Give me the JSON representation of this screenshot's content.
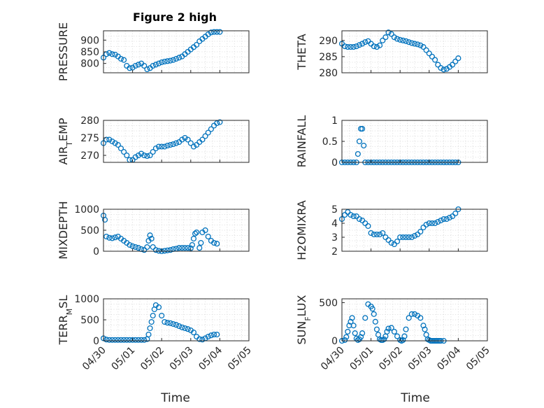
{
  "title": "Figure 2 high",
  "xlabel": "Time",
  "chart_data": [
    {
      "type": "scatter",
      "ylabel": "PRESSURE",
      "ylabel_sub": "",
      "ylabel_tail": "",
      "ylim": [
        760,
        940
      ],
      "yticks": [
        800,
        850,
        900
      ],
      "show_xticks": false,
      "title_key": "title",
      "x": [
        0,
        0.1,
        0.2,
        0.3,
        0.4,
        0.5,
        0.6,
        0.7,
        0.8,
        0.9,
        1.0,
        1.1,
        1.2,
        1.3,
        1.4,
        1.5,
        1.6,
        1.7,
        1.8,
        1.9,
        2.0,
        2.1,
        2.2,
        2.3,
        2.4,
        2.5,
        2.6,
        2.7,
        2.8,
        2.9,
        3.0,
        3.1,
        3.2,
        3.3,
        3.4,
        3.5,
        3.6,
        3.7,
        3.8,
        3.9,
        4.0
      ],
      "y": [
        825,
        840,
        845,
        840,
        838,
        830,
        820,
        815,
        790,
        780,
        782,
        790,
        795,
        800,
        790,
        775,
        780,
        790,
        795,
        800,
        805,
        808,
        810,
        812,
        815,
        820,
        825,
        830,
        840,
        850,
        860,
        870,
        880,
        895,
        905,
        915,
        925,
        933,
        935,
        935,
        935
      ]
    },
    {
      "type": "scatter",
      "ylabel": "THETA",
      "ylabel_sub": "",
      "ylabel_tail": "",
      "ylim": [
        280,
        293
      ],
      "yticks": [
        280,
        285,
        290
      ],
      "show_xticks": false,
      "x": [
        0,
        0.1,
        0.2,
        0.3,
        0.4,
        0.5,
        0.6,
        0.7,
        0.8,
        0.9,
        1.0,
        1.1,
        1.2,
        1.3,
        1.4,
        1.5,
        1.6,
        1.7,
        1.8,
        1.9,
        2.0,
        2.1,
        2.2,
        2.3,
        2.4,
        2.5,
        2.6,
        2.7,
        2.8,
        2.9,
        3.0,
        3.1,
        3.2,
        3.3,
        3.4,
        3.5,
        3.6,
        3.7,
        3.8,
        3.9,
        4.0
      ],
      "y": [
        289,
        288.2,
        288,
        288,
        288,
        288.2,
        288.6,
        289,
        289.5,
        289.8,
        289,
        288.2,
        288,
        288.5,
        290,
        291,
        292.5,
        292,
        291,
        290.5,
        290.2,
        290,
        289.8,
        289.5,
        289.2,
        289,
        288.8,
        288.5,
        288,
        287,
        286,
        285,
        284,
        282.5,
        281.5,
        281,
        281.2,
        281.8,
        282.5,
        283.5,
        284.5
      ]
    },
    {
      "type": "scatter",
      "ylabel": "AIR",
      "ylabel_sub": "T",
      "ylabel_tail": "EMP",
      "ylim": [
        268,
        280
      ],
      "yticks": [
        270,
        275,
        280
      ],
      "show_xticks": false,
      "x": [
        0,
        0.1,
        0.2,
        0.3,
        0.4,
        0.5,
        0.6,
        0.7,
        0.8,
        0.9,
        1.0,
        1.1,
        1.2,
        1.3,
        1.4,
        1.5,
        1.6,
        1.7,
        1.8,
        1.9,
        2.0,
        2.1,
        2.2,
        2.3,
        2.4,
        2.5,
        2.6,
        2.7,
        2.8,
        2.9,
        3.0,
        3.1,
        3.2,
        3.3,
        3.4,
        3.5,
        3.6,
        3.7,
        3.8,
        3.9,
        4.0
      ],
      "y": [
        273.5,
        274.5,
        274.5,
        274,
        273.5,
        273,
        272,
        271,
        270,
        268.7,
        268.7,
        269.5,
        270,
        270.5,
        270,
        269.8,
        270,
        271,
        272,
        272.5,
        272.5,
        272.5,
        272.8,
        273,
        273.2,
        273.5,
        273.8,
        274.5,
        275,
        274.5,
        273.5,
        272.5,
        273,
        273.8,
        274.5,
        275.5,
        276.5,
        277.5,
        278.5,
        279.2,
        279.5
      ]
    },
    {
      "type": "scatter",
      "ylabel": "RAINFALL",
      "ylabel_sub": "",
      "ylabel_tail": "",
      "ylim": [
        0,
        1
      ],
      "yticks": [
        0,
        0.5,
        1
      ],
      "show_xticks": false,
      "x": [
        0,
        0.1,
        0.2,
        0.3,
        0.4,
        0.5,
        0.55,
        0.6,
        0.65,
        0.7,
        0.75,
        0.8,
        0.9,
        1.0,
        1.1,
        1.2,
        1.3,
        1.4,
        1.5,
        1.6,
        1.7,
        1.8,
        1.9,
        2.0,
        2.1,
        2.2,
        2.3,
        2.4,
        2.5,
        2.6,
        2.7,
        2.8,
        2.9,
        3.0,
        3.1,
        3.2,
        3.3,
        3.4,
        3.5,
        3.6,
        3.7,
        3.8,
        3.9,
        4.0
      ],
      "y": [
        0,
        0,
        0,
        0,
        0,
        0,
        0.2,
        0.5,
        0.8,
        0.8,
        0.4,
        0,
        0,
        0,
        0,
        0,
        0,
        0,
        0,
        0,
        0,
        0,
        0,
        0,
        0,
        0,
        0,
        0,
        0,
        0,
        0,
        0,
        0,
        0,
        0,
        0,
        0,
        0,
        0,
        0,
        0,
        0,
        0,
        0
      ]
    },
    {
      "type": "scatter",
      "ylabel": "MIXDEPTH",
      "ylabel_sub": "",
      "ylabel_tail": "",
      "ylim": [
        0,
        1000
      ],
      "yticks": [
        0,
        500,
        1000
      ],
      "show_xticks": false,
      "x": [
        0,
        0.05,
        0.1,
        0.2,
        0.3,
        0.4,
        0.5,
        0.6,
        0.7,
        0.8,
        0.9,
        1.0,
        1.1,
        1.2,
        1.3,
        1.4,
        1.5,
        1.55,
        1.6,
        1.65,
        1.7,
        1.8,
        1.9,
        2.0,
        2.1,
        2.2,
        2.3,
        2.4,
        2.5,
        2.6,
        2.7,
        2.8,
        2.9,
        3.0,
        3.05,
        3.1,
        3.15,
        3.2,
        3.3,
        3.35,
        3.4,
        3.5,
        3.6,
        3.7,
        3.8,
        3.9
      ],
      "y": [
        850,
        750,
        350,
        320,
        310,
        330,
        350,
        300,
        250,
        200,
        150,
        120,
        100,
        80,
        50,
        30,
        100,
        250,
        380,
        300,
        100,
        30,
        10,
        0,
        10,
        20,
        30,
        50,
        60,
        80,
        80,
        80,
        80,
        70,
        150,
        300,
        420,
        450,
        80,
        200,
        450,
        500,
        350,
        250,
        200,
        180
      ]
    },
    {
      "type": "scatter",
      "ylabel": "H2OMIXRA",
      "ylabel_sub": "",
      "ylabel_tail": "",
      "ylim": [
        2,
        5
      ],
      "yticks": [
        2,
        3,
        4,
        5
      ],
      "show_xticks": false,
      "x": [
        0,
        0.1,
        0.2,
        0.3,
        0.4,
        0.5,
        0.6,
        0.7,
        0.8,
        0.9,
        1.0,
        1.1,
        1.2,
        1.3,
        1.4,
        1.5,
        1.6,
        1.7,
        1.8,
        1.9,
        2.0,
        2.1,
        2.2,
        2.3,
        2.4,
        2.5,
        2.6,
        2.7,
        2.8,
        2.9,
        3.0,
        3.1,
        3.2,
        3.3,
        3.4,
        3.5,
        3.6,
        3.7,
        3.8,
        3.9,
        4.0
      ],
      "y": [
        4.3,
        4.6,
        4.8,
        4.6,
        4.5,
        4.5,
        4.3,
        4.2,
        4.0,
        3.8,
        3.3,
        3.2,
        3.2,
        3.2,
        3.3,
        3.0,
        2.8,
        2.6,
        2.5,
        2.7,
        3.0,
        3.0,
        3.0,
        3.0,
        3.0,
        3.1,
        3.2,
        3.4,
        3.7,
        3.9,
        4.0,
        4.0,
        4.0,
        4.1,
        4.2,
        4.3,
        4.3,
        4.4,
        4.5,
        4.7,
        5.0
      ]
    },
    {
      "type": "scatter",
      "ylabel": "TERR",
      "ylabel_sub": "M",
      "ylabel_tail": "SL",
      "ylim": [
        0,
        1000
      ],
      "yticks": [
        0,
        500,
        1000
      ],
      "show_xticks": true,
      "x": [
        0,
        0.1,
        0.2,
        0.3,
        0.4,
        0.5,
        0.6,
        0.7,
        0.8,
        0.9,
        1.0,
        1.1,
        1.2,
        1.3,
        1.4,
        1.5,
        1.55,
        1.6,
        1.65,
        1.7,
        1.75,
        1.8,
        1.9,
        2.0,
        2.1,
        2.2,
        2.3,
        2.4,
        2.5,
        2.6,
        2.7,
        2.8,
        2.9,
        3.0,
        3.1,
        3.2,
        3.3,
        3.4,
        3.5,
        3.6,
        3.7,
        3.8,
        3.9
      ],
      "y": [
        60,
        30,
        20,
        20,
        20,
        20,
        20,
        20,
        20,
        20,
        20,
        20,
        20,
        20,
        20,
        40,
        150,
        300,
        450,
        600,
        750,
        850,
        800,
        600,
        450,
        430,
        420,
        400,
        380,
        350,
        320,
        300,
        280,
        250,
        200,
        100,
        40,
        30,
        60,
        100,
        130,
        150,
        150
      ]
    },
    {
      "type": "scatter",
      "ylabel": "SUN",
      "ylabel_sub": "F",
      "ylabel_tail": "LUX",
      "ylim": [
        0,
        550
      ],
      "yticks": [
        0,
        500
      ],
      "show_xticks": true,
      "x": [
        0,
        0.1,
        0.15,
        0.2,
        0.25,
        0.3,
        0.35,
        0.4,
        0.45,
        0.5,
        0.55,
        0.6,
        0.65,
        0.7,
        0.8,
        0.9,
        1.0,
        1.05,
        1.1,
        1.15,
        1.2,
        1.25,
        1.3,
        1.35,
        1.4,
        1.45,
        1.5,
        1.55,
        1.6,
        1.7,
        1.8,
        1.9,
        2.0,
        2.05,
        2.1,
        2.15,
        2.2,
        2.3,
        2.4,
        2.5,
        2.6,
        2.7,
        2.8,
        2.85,
        2.9,
        2.95,
        3.0,
        3.05,
        3.1,
        3.15,
        3.2,
        3.25,
        3.3,
        3.35,
        3.4,
        3.5
      ],
      "y": [
        0,
        10,
        50,
        120,
        200,
        250,
        300,
        200,
        100,
        30,
        10,
        20,
        50,
        100,
        300,
        480,
        450,
        420,
        350,
        250,
        150,
        80,
        20,
        10,
        10,
        20,
        60,
        120,
        160,
        170,
        120,
        60,
        10,
        0,
        10,
        60,
        150,
        300,
        350,
        350,
        330,
        300,
        200,
        150,
        80,
        20,
        10,
        0,
        0,
        0,
        0,
        0,
        0,
        0,
        0,
        0
      ]
    }
  ],
  "xtick_labels": [
    "04/30",
    "05/01",
    "05/02",
    "05/03",
    "05/04",
    "05/05"
  ],
  "xlim": [
    0,
    5
  ],
  "colors": {
    "marker": "#0072bd",
    "axis": "#262626",
    "grid": "#d9d9d9"
  }
}
